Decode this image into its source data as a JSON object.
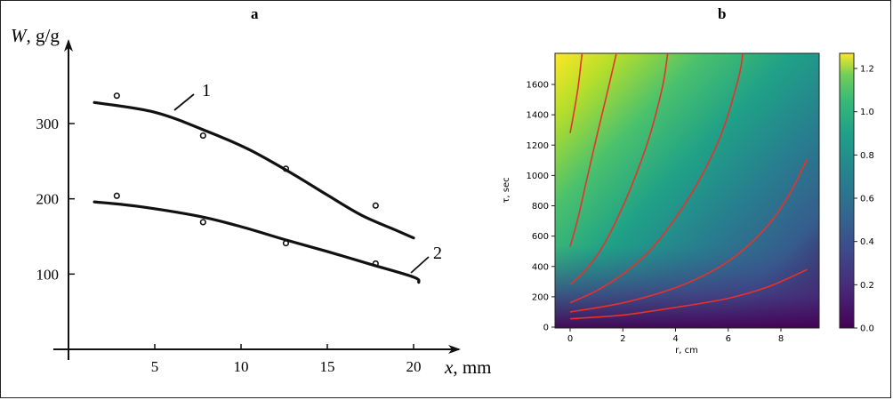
{
  "panels": {
    "a_label": "a",
    "b_label": "b"
  },
  "chart_data": [
    {
      "type": "line",
      "panel": "a",
      "title": "",
      "ylabel_var": "W",
      "ylabel_unit": ", g/g",
      "xlabel_var": "x",
      "xlabel_unit": ", mm",
      "xlim": [
        0,
        22
      ],
      "ylim": [
        0,
        400
      ],
      "xticks": [
        5,
        10,
        15,
        20
      ],
      "yticks": [
        100,
        200,
        300
      ],
      "series": [
        {
          "name": "1",
          "curve": [
            [
              1.5,
              328
            ],
            [
              5,
              315
            ],
            [
              8,
              290
            ],
            [
              10.5,
              265
            ],
            [
              13,
              233
            ],
            [
              15,
              205
            ],
            [
              17,
              178
            ],
            [
              19,
              158
            ],
            [
              20,
              148
            ]
          ],
          "points": [
            [
              2.8,
              337
            ],
            [
              7.8,
              284
            ],
            [
              12.6,
              240
            ],
            [
              17.8,
              191
            ]
          ]
        },
        {
          "name": "2",
          "curve": [
            [
              1.5,
              196
            ],
            [
              4,
              190
            ],
            [
              7.5,
              177
            ],
            [
              10,
              163
            ],
            [
              12.5,
              146
            ],
            [
              15,
              130
            ],
            [
              17.5,
              113
            ],
            [
              20,
              96
            ],
            [
              20.3,
              89
            ]
          ],
          "points": [
            [
              2.8,
              204
            ],
            [
              7.8,
              169
            ],
            [
              12.6,
              141
            ],
            [
              17.8,
              114
            ]
          ]
        }
      ],
      "annotations": [
        {
          "text": "1",
          "series": "1"
        },
        {
          "text": "2",
          "series": "2"
        }
      ]
    },
    {
      "type": "heatmap",
      "panel": "b",
      "title": "",
      "xlabel": "r, cm",
      "ylabel": "τ, sec",
      "xlim": [
        -0.5,
        9.5
      ],
      "ylim": [
        0,
        1800
      ],
      "xticks": [
        0,
        2,
        4,
        6,
        8
      ],
      "yticks": [
        0,
        200,
        400,
        600,
        800,
        1000,
        1200,
        1400,
        1600
      ],
      "colorbar": {
        "vmin": 0,
        "vmax": 1.27,
        "ticks": [
          "0.0",
          "0.2",
          "0.4",
          "0.6",
          "0.8",
          "1.0",
          "1.2"
        ],
        "colormap": "viridis"
      },
      "contours": [
        [
          [
            0.0,
            1280
          ],
          [
            0.15,
            1420
          ],
          [
            0.3,
            1580
          ],
          [
            0.45,
            1800
          ]
        ],
        [
          [
            0.0,
            530
          ],
          [
            0.3,
            720
          ],
          [
            0.6,
            950
          ],
          [
            1.0,
            1250
          ],
          [
            1.4,
            1540
          ],
          [
            1.75,
            1800
          ]
        ],
        [
          [
            0.0,
            280
          ],
          [
            0.6,
            380
          ],
          [
            1.2,
            520
          ],
          [
            1.8,
            720
          ],
          [
            2.4,
            960
          ],
          [
            3.0,
            1250
          ],
          [
            3.5,
            1580
          ],
          [
            3.7,
            1800
          ]
        ],
        [
          [
            0.0,
            160
          ],
          [
            1.0,
            240
          ],
          [
            2.0,
            350
          ],
          [
            3.0,
            500
          ],
          [
            4.0,
            720
          ],
          [
            5.0,
            1000
          ],
          [
            5.8,
            1300
          ],
          [
            6.4,
            1650
          ],
          [
            6.55,
            1800
          ]
        ],
        [
          [
            0.0,
            100
          ],
          [
            2.0,
            160
          ],
          [
            4.0,
            260
          ],
          [
            5.5,
            380
          ],
          [
            6.5,
            500
          ],
          [
            7.5,
            670
          ],
          [
            8.3,
            870
          ],
          [
            9.0,
            1110
          ]
        ],
        [
          [
            0.0,
            55
          ],
          [
            2.0,
            80
          ],
          [
            4.0,
            130
          ],
          [
            6.0,
            190
          ],
          [
            7.5,
            265
          ],
          [
            9.0,
            380
          ]
        ]
      ]
    }
  ]
}
